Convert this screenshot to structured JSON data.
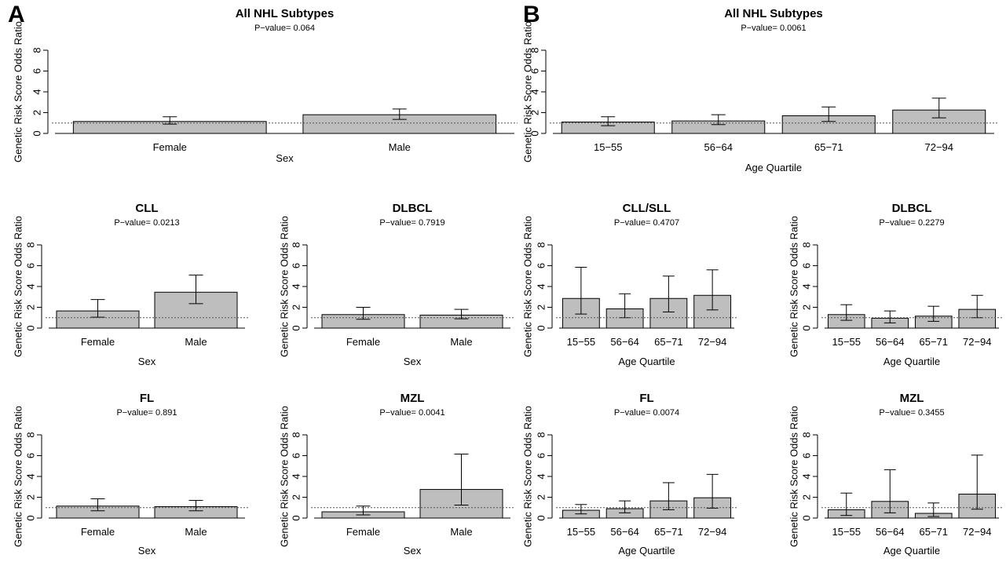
{
  "figure": {
    "panel_labels": [
      "A",
      "B"
    ]
  },
  "chart_data": [
    {
      "type": "bar",
      "panel": "A",
      "title": "All NHL Subtypes",
      "subtitle": "P−value= 0.064",
      "xlabel": "Sex",
      "ylabel": "Genetic Risk Score Odds Ratio",
      "categories": [
        "Female",
        "Male"
      ],
      "values": [
        1.15,
        1.8
      ],
      "ci_lower": [
        0.9,
        1.35
      ],
      "ci_upper": [
        1.6,
        2.35
      ],
      "reference_line": 1,
      "ylim": [
        0,
        8
      ],
      "yticks": [
        "0",
        "2",
        "4",
        "6",
        "8"
      ],
      "grid": false
    },
    {
      "type": "bar",
      "panel": "B",
      "title": "All NHL Subtypes",
      "subtitle": "P−value= 0.0061",
      "xlabel": "Age Quartile",
      "ylabel": "Genetic Risk Score Odds Ratio",
      "categories": [
        "15−55",
        "56−64",
        "65−71",
        "72−94"
      ],
      "values": [
        1.1,
        1.2,
        1.7,
        2.25
      ],
      "ci_lower": [
        0.75,
        0.85,
        1.15,
        1.5
      ],
      "ci_upper": [
        1.6,
        1.8,
        2.55,
        3.4
      ],
      "reference_line": 1,
      "ylim": [
        0,
        8
      ],
      "yticks": [
        "0",
        "2",
        "4",
        "6",
        "8"
      ],
      "grid": false
    },
    {
      "type": "bar",
      "panel": "A",
      "title": "CLL",
      "subtitle": "P−value= 0.0213",
      "xlabel": "Sex",
      "ylabel": "Genetic Risk Score Odds Ratio",
      "categories": [
        "Female",
        "Male"
      ],
      "values": [
        1.65,
        3.45
      ],
      "ci_lower": [
        1.05,
        2.35
      ],
      "ci_upper": [
        2.75,
        5.1
      ],
      "reference_line": 1,
      "ylim": [
        0,
        8
      ],
      "yticks": [
        "0",
        "2",
        "4",
        "6",
        "8"
      ],
      "grid": false
    },
    {
      "type": "bar",
      "panel": "A",
      "title": "DLBCL",
      "subtitle": "P−value= 0.7919",
      "xlabel": "Sex",
      "ylabel": "Genetic Risk Score Odds Ratio",
      "categories": [
        "Female",
        "Male"
      ],
      "values": [
        1.3,
        1.25
      ],
      "ci_lower": [
        0.85,
        0.9
      ],
      "ci_upper": [
        2.0,
        1.8
      ],
      "reference_line": 1,
      "ylim": [
        0,
        8
      ],
      "yticks": [
        "0",
        "2",
        "4",
        "6",
        "8"
      ],
      "grid": false
    },
    {
      "type": "bar",
      "panel": "B",
      "title": "CLL/SLL",
      "subtitle": "P−value= 0.4707",
      "xlabel": "Age Quartile",
      "ylabel": "Genetic Risk Score Odds Ratio",
      "categories": [
        "15−55",
        "56−64",
        "65−71",
        "72−94"
      ],
      "values": [
        2.85,
        1.85,
        2.85,
        3.15
      ],
      "ci_lower": [
        1.35,
        1.0,
        1.55,
        1.75
      ],
      "ci_upper": [
        5.85,
        3.3,
        5.0,
        5.6
      ],
      "reference_line": 1,
      "ylim": [
        0,
        8
      ],
      "yticks": [
        "0",
        "2",
        "4",
        "6",
        "8"
      ],
      "grid": false
    },
    {
      "type": "bar",
      "panel": "B",
      "title": "DLBCL",
      "subtitle": "P−value= 0.2279",
      "xlabel": "Age Quartile",
      "ylabel": "Genetic Risk Score Odds Ratio",
      "categories": [
        "15−55",
        "56−64",
        "65−71",
        "72−94"
      ],
      "values": [
        1.3,
        0.95,
        1.15,
        1.8
      ],
      "ci_lower": [
        0.75,
        0.5,
        0.65,
        1.0
      ],
      "ci_upper": [
        2.25,
        1.65,
        2.1,
        3.15
      ],
      "reference_line": 1,
      "ylim": [
        0,
        8
      ],
      "yticks": [
        "0",
        "2",
        "4",
        "6",
        "8"
      ],
      "grid": false
    },
    {
      "type": "bar",
      "panel": "A",
      "title": "FL",
      "subtitle": "P−value= 0.891",
      "xlabel": "Sex",
      "ylabel": "Genetic Risk Score Odds Ratio",
      "categories": [
        "Female",
        "Male"
      ],
      "values": [
        1.15,
        1.1
      ],
      "ci_lower": [
        0.7,
        0.7
      ],
      "ci_upper": [
        1.85,
        1.7
      ],
      "reference_line": 1,
      "ylim": [
        0,
        8
      ],
      "yticks": [
        "0",
        "2",
        "4",
        "6",
        "8"
      ],
      "grid": false
    },
    {
      "type": "bar",
      "panel": "A",
      "title": "MZL",
      "subtitle": "P−value= 0.0041",
      "xlabel": "Sex",
      "ylabel": "Genetic Risk Score Odds Ratio",
      "categories": [
        "Female",
        "Male"
      ],
      "values": [
        0.6,
        2.75
      ],
      "ci_lower": [
        0.3,
        1.25
      ],
      "ci_upper": [
        1.15,
        6.15
      ],
      "reference_line": 1,
      "ylim": [
        0,
        8
      ],
      "yticks": [
        "0",
        "2",
        "4",
        "6",
        "8"
      ],
      "grid": false
    },
    {
      "type": "bar",
      "panel": "B",
      "title": "FL",
      "subtitle": "P−value= 0.0074",
      "xlabel": "Age Quartile",
      "ylabel": "Genetic Risk Score Odds Ratio",
      "categories": [
        "15−55",
        "56−64",
        "65−71",
        "72−94"
      ],
      "values": [
        0.75,
        0.9,
        1.65,
        1.95
      ],
      "ci_lower": [
        0.4,
        0.5,
        0.8,
        0.95
      ],
      "ci_upper": [
        1.3,
        1.65,
        3.4,
        4.2
      ],
      "reference_line": 1,
      "ylim": [
        0,
        8
      ],
      "yticks": [
        "0",
        "2",
        "4",
        "6",
        "8"
      ],
      "grid": false
    },
    {
      "type": "bar",
      "panel": "B",
      "title": "MZL",
      "subtitle": "P−value= 0.3455",
      "xlabel": "Age Quartile",
      "ylabel": "Genetic Risk Score Odds Ratio",
      "categories": [
        "15−55",
        "56−64",
        "65−71",
        "72−94"
      ],
      "values": [
        0.8,
        1.6,
        0.45,
        2.3
      ],
      "ci_lower": [
        0.25,
        0.5,
        0.15,
        0.85
      ],
      "ci_upper": [
        2.4,
        4.65,
        1.45,
        6.05
      ],
      "reference_line": 1,
      "ylim": [
        0,
        8
      ],
      "yticks": [
        "0",
        "2",
        "4",
        "6",
        "8"
      ],
      "grid": false
    }
  ]
}
